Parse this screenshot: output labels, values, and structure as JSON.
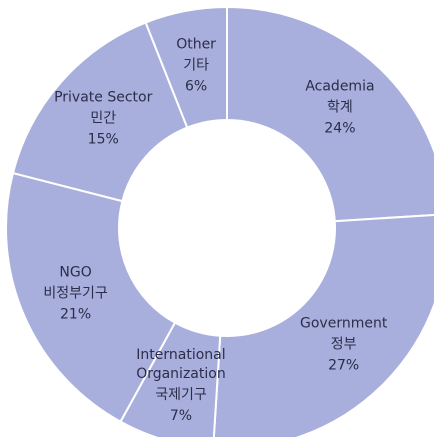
{
  "chart_data": {
    "type": "donut",
    "categories": [
      "Academia",
      "Government",
      "International Organization",
      "NGO",
      "Private Sector",
      "Other"
    ],
    "local_names": [
      "학계",
      "정부",
      "국제기구",
      "비정부기구",
      "민간",
      "기타"
    ],
    "values": [
      24,
      27,
      7,
      21,
      15,
      6
    ],
    "value_labels": [
      "24%",
      "27%",
      "7%",
      "21%",
      "15%",
      "6%"
    ],
    "color": "#a9afdc"
  }
}
